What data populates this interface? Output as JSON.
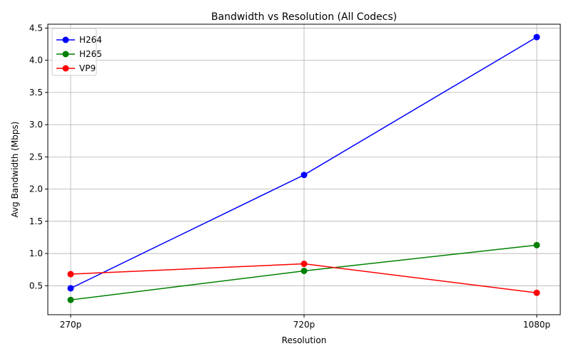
{
  "chart_data": {
    "type": "line",
    "title": "Bandwidth vs Resolution (All Codecs)",
    "xlabel": "Resolution",
    "ylabel": "Avg Bandwidth (Mbps)",
    "categories": [
      "270p",
      "720p",
      "1080p"
    ],
    "ylim": [
      0.05,
      4.56
    ],
    "yticks": [
      0.5,
      1.0,
      1.5,
      2.0,
      2.5,
      3.0,
      3.5,
      4.0,
      4.5
    ],
    "ytick_labels": [
      "0.5",
      "1.0",
      "1.5",
      "2.0",
      "2.5",
      "3.0",
      "3.5",
      "4.0",
      "4.5"
    ],
    "grid": true,
    "legend_position": "top-left",
    "series": [
      {
        "name": "H264",
        "color": "#0000ff",
        "values": [
          0.46,
          2.22,
          4.36
        ]
      },
      {
        "name": "H265",
        "color": "#008000",
        "values": [
          0.28,
          0.73,
          1.13
        ]
      },
      {
        "name": "VP9",
        "color": "#ff0000",
        "values": [
          0.68,
          0.84,
          0.39
        ]
      }
    ]
  }
}
